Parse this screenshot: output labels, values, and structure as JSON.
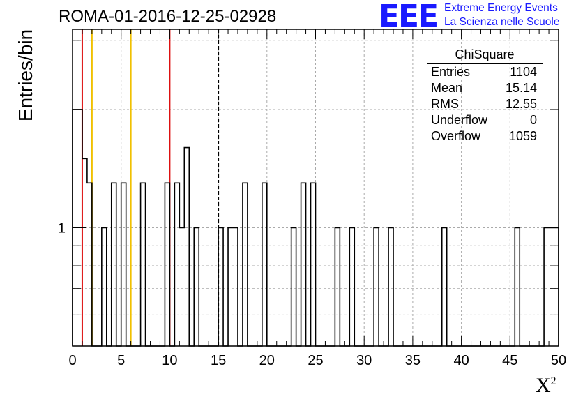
{
  "title": "ROMA-01-2016-12-25-02928",
  "logo": {
    "mark": "EEE",
    "line1": "Extreme Energy Events",
    "line2": "La Scienza nelle Scuole",
    "color": "#1a1aff"
  },
  "axes": {
    "xlabel": "X",
    "xlabel_sup": "2",
    "ylabel": "Entries/bin"
  },
  "stats": {
    "title": "ChiSquare",
    "rows": [
      {
        "name": "Entries",
        "value": "1104"
      },
      {
        "name": "Mean",
        "value": "15.14"
      },
      {
        "name": "RMS",
        "value": "12.55"
      },
      {
        "name": "Underflow",
        "value": "0"
      },
      {
        "name": "Overflow",
        "value": "1059"
      }
    ]
  },
  "chart_data": {
    "type": "bar",
    "histogram_name": "ChiSquare",
    "xlim": [
      0,
      50
    ],
    "bin_width": 0.5,
    "y_scale": "log",
    "ylim": [
      0.5,
      3.2
    ],
    "xticks": [
      "0",
      "5",
      "10",
      "15",
      "20",
      "25",
      "30",
      "35",
      "40",
      "45",
      "50"
    ],
    "yticks": [
      "1"
    ],
    "grid": true,
    "bins": [
      {
        "x": 0,
        "count": 2
      },
      {
        "x": 0.5,
        "count": 2
      },
      {
        "x": 1,
        "count": 1.5
      },
      {
        "x": 1.5,
        "count": 1.3
      },
      {
        "x": 3,
        "count": 1
      },
      {
        "x": 4,
        "count": 1.3
      },
      {
        "x": 5,
        "count": 1.3
      },
      {
        "x": 7,
        "count": 1.3
      },
      {
        "x": 9.5,
        "count": 1.3
      },
      {
        "x": 10.5,
        "count": 1.3
      },
      {
        "x": 11,
        "count": 1
      },
      {
        "x": 11.5,
        "count": 1.6
      },
      {
        "x": 12.5,
        "count": 1
      },
      {
        "x": 15,
        "count": 1
      },
      {
        "x": 16,
        "count": 1
      },
      {
        "x": 16.5,
        "count": 1
      },
      {
        "x": 17.5,
        "count": 1.3
      },
      {
        "x": 19.5,
        "count": 1.3
      },
      {
        "x": 22.5,
        "count": 1
      },
      {
        "x": 23.5,
        "count": 1.3
      },
      {
        "x": 24.5,
        "count": 1.3
      },
      {
        "x": 27,
        "count": 1
      },
      {
        "x": 28.5,
        "count": 1
      },
      {
        "x": 31,
        "count": 1
      },
      {
        "x": 32.5,
        "count": 1
      },
      {
        "x": 38,
        "count": 1
      },
      {
        "x": 45.5,
        "count": 1
      },
      {
        "x": 48.5,
        "count": 1
      },
      {
        "x": 49,
        "count": 1
      },
      {
        "x": 49.5,
        "count": 1
      }
    ],
    "vlines": [
      {
        "x": 1,
        "color": "#dd1111",
        "dash": false
      },
      {
        "x": 2,
        "color": "#f0c000",
        "dash": false
      },
      {
        "x": 6,
        "color": "#f0c000",
        "dash": false
      },
      {
        "x": 10,
        "color": "#dd1111",
        "dash": false
      },
      {
        "x": 15,
        "color": "#000000",
        "dash": true
      }
    ]
  }
}
